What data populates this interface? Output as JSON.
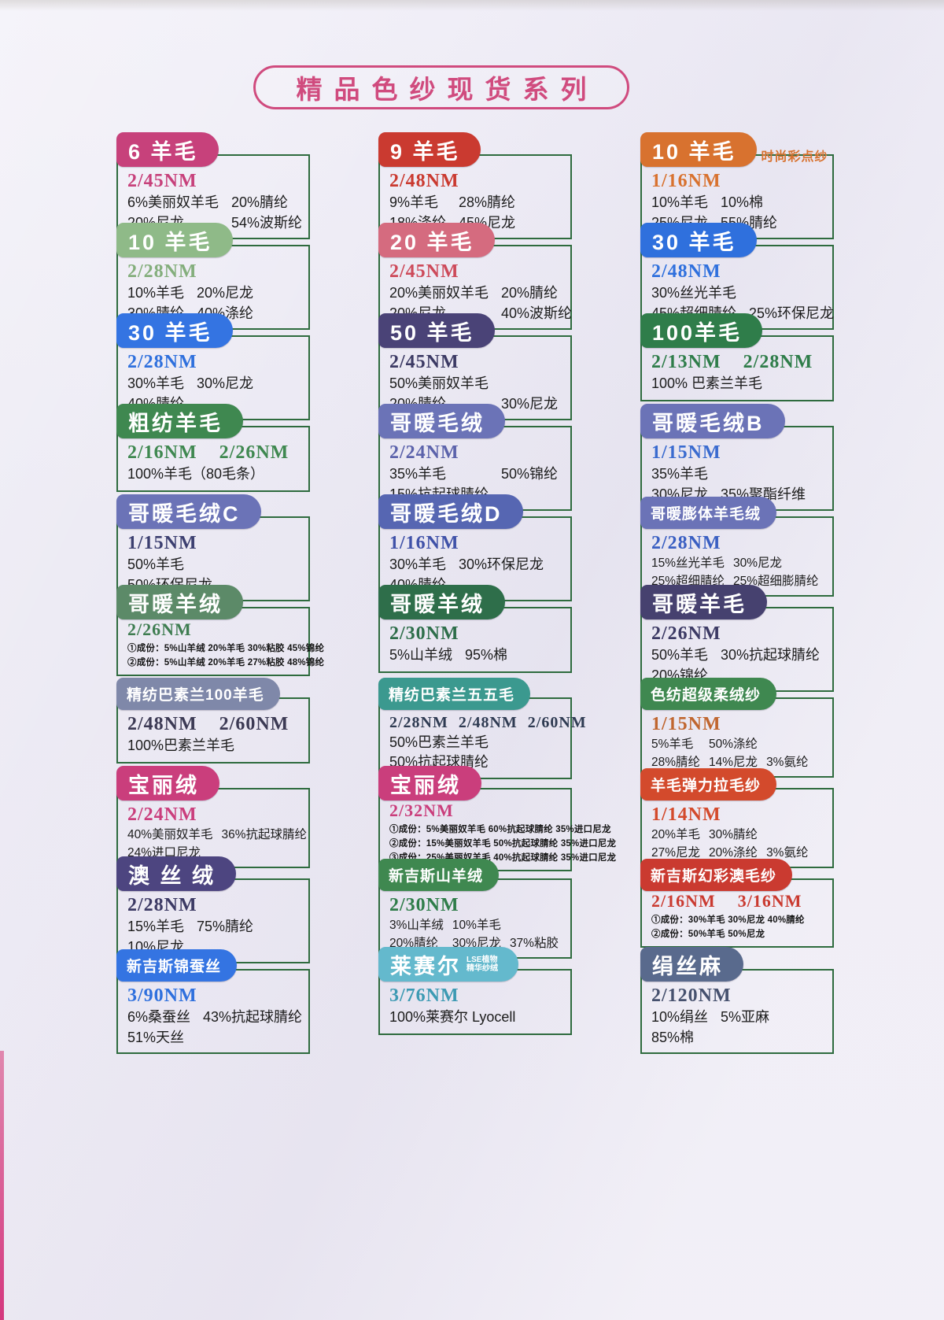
{
  "title": "精品色纱现货系列",
  "theme": {
    "title_color": "#d04b7e",
    "box_border_color": "#2e6b3e",
    "text_color": "#1b1b1b",
    "page_background": "#edebf5"
  },
  "cards": [
    {
      "name": "6 羊毛",
      "pill_color": "#c7417b",
      "nm": [
        "2/45NM"
      ],
      "nm_color": "#c7417b",
      "lines": [
        [
          "6%美丽奴羊毛",
          "20%腈纶"
        ],
        [
          "20%尼龙",
          "54%波斯纶"
        ]
      ]
    },
    {
      "name": "9 羊毛",
      "pill_color": "#ca3a30",
      "nm": [
        "2/48NM"
      ],
      "nm_color": "#ca3a30",
      "lines": [
        [
          "9%羊毛",
          "28%腈纶"
        ],
        [
          "18%涤纶",
          "45%尼龙"
        ]
      ]
    },
    {
      "name": "10 羊毛",
      "pill_color": "#d8722f",
      "tag": "时尚彩点纱",
      "tag_color": "#d8722f",
      "nm": [
        "1/16NM"
      ],
      "nm_color": "#d8722f",
      "lines": [
        [
          "10%羊毛",
          "10%棉"
        ],
        [
          "25%尼龙",
          "55%腈纶"
        ]
      ]
    },
    {
      "name": "10 羊毛",
      "pill_color": "#8fba88",
      "nm": [
        "2/28NM"
      ],
      "nm_color": "#84ae7c",
      "lines": [
        [
          "10%羊毛",
          "20%尼龙"
        ],
        [
          "30%腈纶",
          "40%涤纶"
        ]
      ]
    },
    {
      "name": "20 羊毛",
      "pill_color": "#d56b7f",
      "nm": [
        "2/45NM"
      ],
      "nm_color": "#cd4a5a",
      "lines": [
        [
          "20%美丽奴羊毛",
          "20%腈纶"
        ],
        [
          "20%尼龙",
          "40%波斯纶"
        ]
      ]
    },
    {
      "name": "30 羊毛",
      "pill_color": "#2f70dd",
      "nm": [
        "2/48NM"
      ],
      "nm_color": "#2f70dd",
      "lines": [
        [
          "30%丝光羊毛"
        ],
        [
          "45%超细腈纶",
          "25%环保尼龙"
        ]
      ]
    },
    {
      "name": "30 羊毛",
      "pill_color": "#3474e2",
      "nm": [
        "2/28NM"
      ],
      "nm_color": "#2f70dd",
      "lines": [
        [
          "30%羊毛",
          "30%尼龙"
        ],
        [
          "40%腈纶"
        ]
      ]
    },
    {
      "name": "50 羊毛",
      "pill_color": "#4a4377",
      "nm": [
        "2/45NM"
      ],
      "nm_color": "#3c3a64",
      "lines": [
        [
          "50%美丽奴羊毛"
        ],
        [
          "20%腈纶",
          "30%尼龙"
        ]
      ]
    },
    {
      "name": "100羊毛",
      "pill_color": "#2f7d4a",
      "nm": [
        "2/13NM",
        "2/28NM"
      ],
      "nm_color": "#2f7d4a",
      "lines": [
        [
          "100% 巴素兰羊毛"
        ]
      ]
    },
    {
      "name": "粗纺羊毛",
      "pill_color": "#3f8850",
      "nm": [
        "2/16NM",
        "2/26NM"
      ],
      "nm_color": "#3f8850",
      "lines": [
        [
          "100%羊毛（80毛条）"
        ]
      ]
    },
    {
      "name": "哥暖毛绒",
      "pill_color": "#6b73b7",
      "nm": [
        "2/24NM"
      ],
      "nm_color": "#5c63ab",
      "lines": [
        [
          "35%羊毛",
          "50%锦纶"
        ],
        [
          "15%抗起球腈纶"
        ]
      ]
    },
    {
      "name": "哥暖毛绒B",
      "pill_color": "#6b73b7",
      "nm": [
        "1/15NM"
      ],
      "nm_color": "#3a6bcf",
      "lines": [
        [
          "35%羊毛"
        ],
        [
          "30%尼龙",
          "35%聚酯纤维"
        ]
      ]
    },
    {
      "name": "哥暖毛绒C",
      "pill_color": "#6b73b7",
      "nm": [
        "1/15NM"
      ],
      "nm_color": "#3c3f70",
      "lines": [
        [
          "50%羊毛"
        ],
        [
          "50%环保尼龙"
        ]
      ]
    },
    {
      "name": "哥暖毛绒D",
      "pill_color": "#5666b2",
      "nm": [
        "1/16NM"
      ],
      "nm_color": "#4052a8",
      "lines": [
        [
          "30%羊毛",
          "30%环保尼龙"
        ],
        [
          "40%腈纶"
        ]
      ]
    },
    {
      "name": "哥暖膨体羊毛绒",
      "small_name": true,
      "pill_color": "#6b73b7",
      "nm": [
        "2/28NM"
      ],
      "nm_color": "#3a5fc2",
      "lines_small": true,
      "lines": [
        [
          "15%丝光羊毛",
          "30%尼龙"
        ],
        [
          "25%超细腈纶",
          "25%超细膨腈纶"
        ]
      ]
    },
    {
      "name": "哥暖羊绒",
      "pill_color": "#5c8a68",
      "nm": [
        "2/26NM"
      ],
      "nm_color": "#3f7d51",
      "micro_lines": [
        "①成份：5%山羊绒  20%羊毛  30%粘胶  45%锦纶",
        "②成份：5%山羊绒  20%羊毛  27%粘胶  48%锦纶"
      ]
    },
    {
      "name": "哥暖羊绒",
      "pill_color": "#2e6e4a",
      "nm": [
        "2/30NM"
      ],
      "nm_color": "#2e6e4a",
      "lines": [
        [
          "5%山羊绒",
          "95%棉"
        ]
      ]
    },
    {
      "name": "哥暖羊毛",
      "pill_color": "#46416f",
      "nm": [
        "2/26NM"
      ],
      "nm_color": "#3c3a64",
      "lines": [
        [
          "50%羊毛",
          "30%抗起球腈纶"
        ],
        [
          "20%锦纶"
        ]
      ]
    },
    {
      "name": "精纺巴素兰100羊毛",
      "small_name": true,
      "pill_color": "#7f88a9",
      "nm": [
        "2/48NM",
        "2/60NM"
      ],
      "nm_color": "#3c3a54",
      "lines": [
        [
          "100%巴素兰羊毛"
        ]
      ]
    },
    {
      "name": "精纺巴素兰五五毛",
      "small_name": true,
      "pill_color": "#3b998f",
      "nm": [
        "2/28NM",
        "2/48NM",
        "2/60NM"
      ],
      "nm_color": "#2f3b52",
      "lines": [
        [
          "50%巴素兰羊毛"
        ],
        [
          "50%抗起球腈纶"
        ]
      ]
    },
    {
      "name": "色纺超级柔绒纱",
      "small_name": true,
      "pill_color": "#3f8850",
      "nm": [
        "1/15NM"
      ],
      "nm_color": "#c0662f",
      "lines_small": true,
      "lines": [
        [
          "5%羊毛",
          "50%涤纶"
        ],
        [
          "28%腈纶",
          "14%尼龙",
          "3%氨纶"
        ]
      ]
    },
    {
      "name": "宝丽绒",
      "pill_color": "#ca3e7c",
      "nm": [
        "2/24NM"
      ],
      "nm_color": "#ca3e7c",
      "lines_small": true,
      "lines": [
        [
          "40%美丽奴羊毛",
          "36%抗起球腈纶"
        ],
        [
          "24%进口尼龙"
        ]
      ]
    },
    {
      "name": "宝丽绒",
      "pill_color": "#ca3e7c",
      "nm": [
        "2/32NM"
      ],
      "nm_color": "#ca3e7c",
      "micro_lines": [
        "①成份：5%美丽奴羊毛  60%抗起球腈纶  35%进口尼龙",
        "②成份：15%美丽奴羊毛  50%抗起球腈纶  35%进口尼龙",
        "③成份：25%美丽奴羊毛  40%抗起球腈纶  35%进口尼龙"
      ]
    },
    {
      "name": "羊毛弹力拉毛纱",
      "small_name": true,
      "pill_color": "#d34a2c",
      "nm": [
        "1/14NM"
      ],
      "nm_color": "#d34a2c",
      "lines_small": true,
      "lines": [
        [
          "20%羊毛",
          "30%腈纶"
        ],
        [
          "27%尼龙",
          "20%涤纶",
          "3%氨纶"
        ]
      ]
    },
    {
      "name": "澳 丝 绒",
      "pill_color": "#4d4580",
      "nm": [
        "2/28NM"
      ],
      "nm_color": "#3c3a64",
      "lines": [
        [
          "15%羊毛",
          "75%腈纶"
        ],
        [
          "10%尼龙"
        ]
      ]
    },
    {
      "name": "新吉斯山羊绒",
      "small_name": true,
      "pill_color": "#3f8850",
      "nm": [
        "2/30NM"
      ],
      "nm_color": "#2f7d4a",
      "lines_small": true,
      "lines": [
        [
          "3%山羊绒",
          "10%羊毛"
        ],
        [
          "20%腈纶",
          "30%尼龙",
          "37%粘胶"
        ]
      ]
    },
    {
      "name": "新吉斯幻彩澳毛纱",
      "small_name": true,
      "pill_color": "#ca3a30",
      "nm": [
        "2/16NM",
        "3/16NM"
      ],
      "nm_color": "#ca3a30",
      "micro_lines": [
        "①成份：30%羊毛  30%尼龙  40%腈纶",
        "②成份：50%羊毛  50%尼龙"
      ]
    },
    {
      "name": "新吉斯锦蚕丝",
      "small_name": true,
      "pill_color": "#3474e2",
      "nm": [
        "3/90NM"
      ],
      "nm_color": "#2f70dd",
      "lines": [
        [
          "6%桑蚕丝",
          "43%抗起球腈纶"
        ],
        [
          "51%天丝"
        ]
      ]
    },
    {
      "name": "莱赛尔",
      "pill_color": "#64b9cd",
      "pill_note": [
        "LSE植物",
        "精华纱绒"
      ],
      "nm": [
        "3/76NM"
      ],
      "nm_color": "#3d9ab3",
      "lines": [
        [
          "100%莱赛尔 Lyocell"
        ]
      ]
    },
    {
      "name": "绢丝麻",
      "pill_color": "#596a8d",
      "nm": [
        "2/120NM"
      ],
      "nm_color": "#46516e",
      "lines": [
        [
          "10%绢丝",
          "5%亚麻"
        ],
        [
          "85%棉"
        ]
      ]
    }
  ]
}
